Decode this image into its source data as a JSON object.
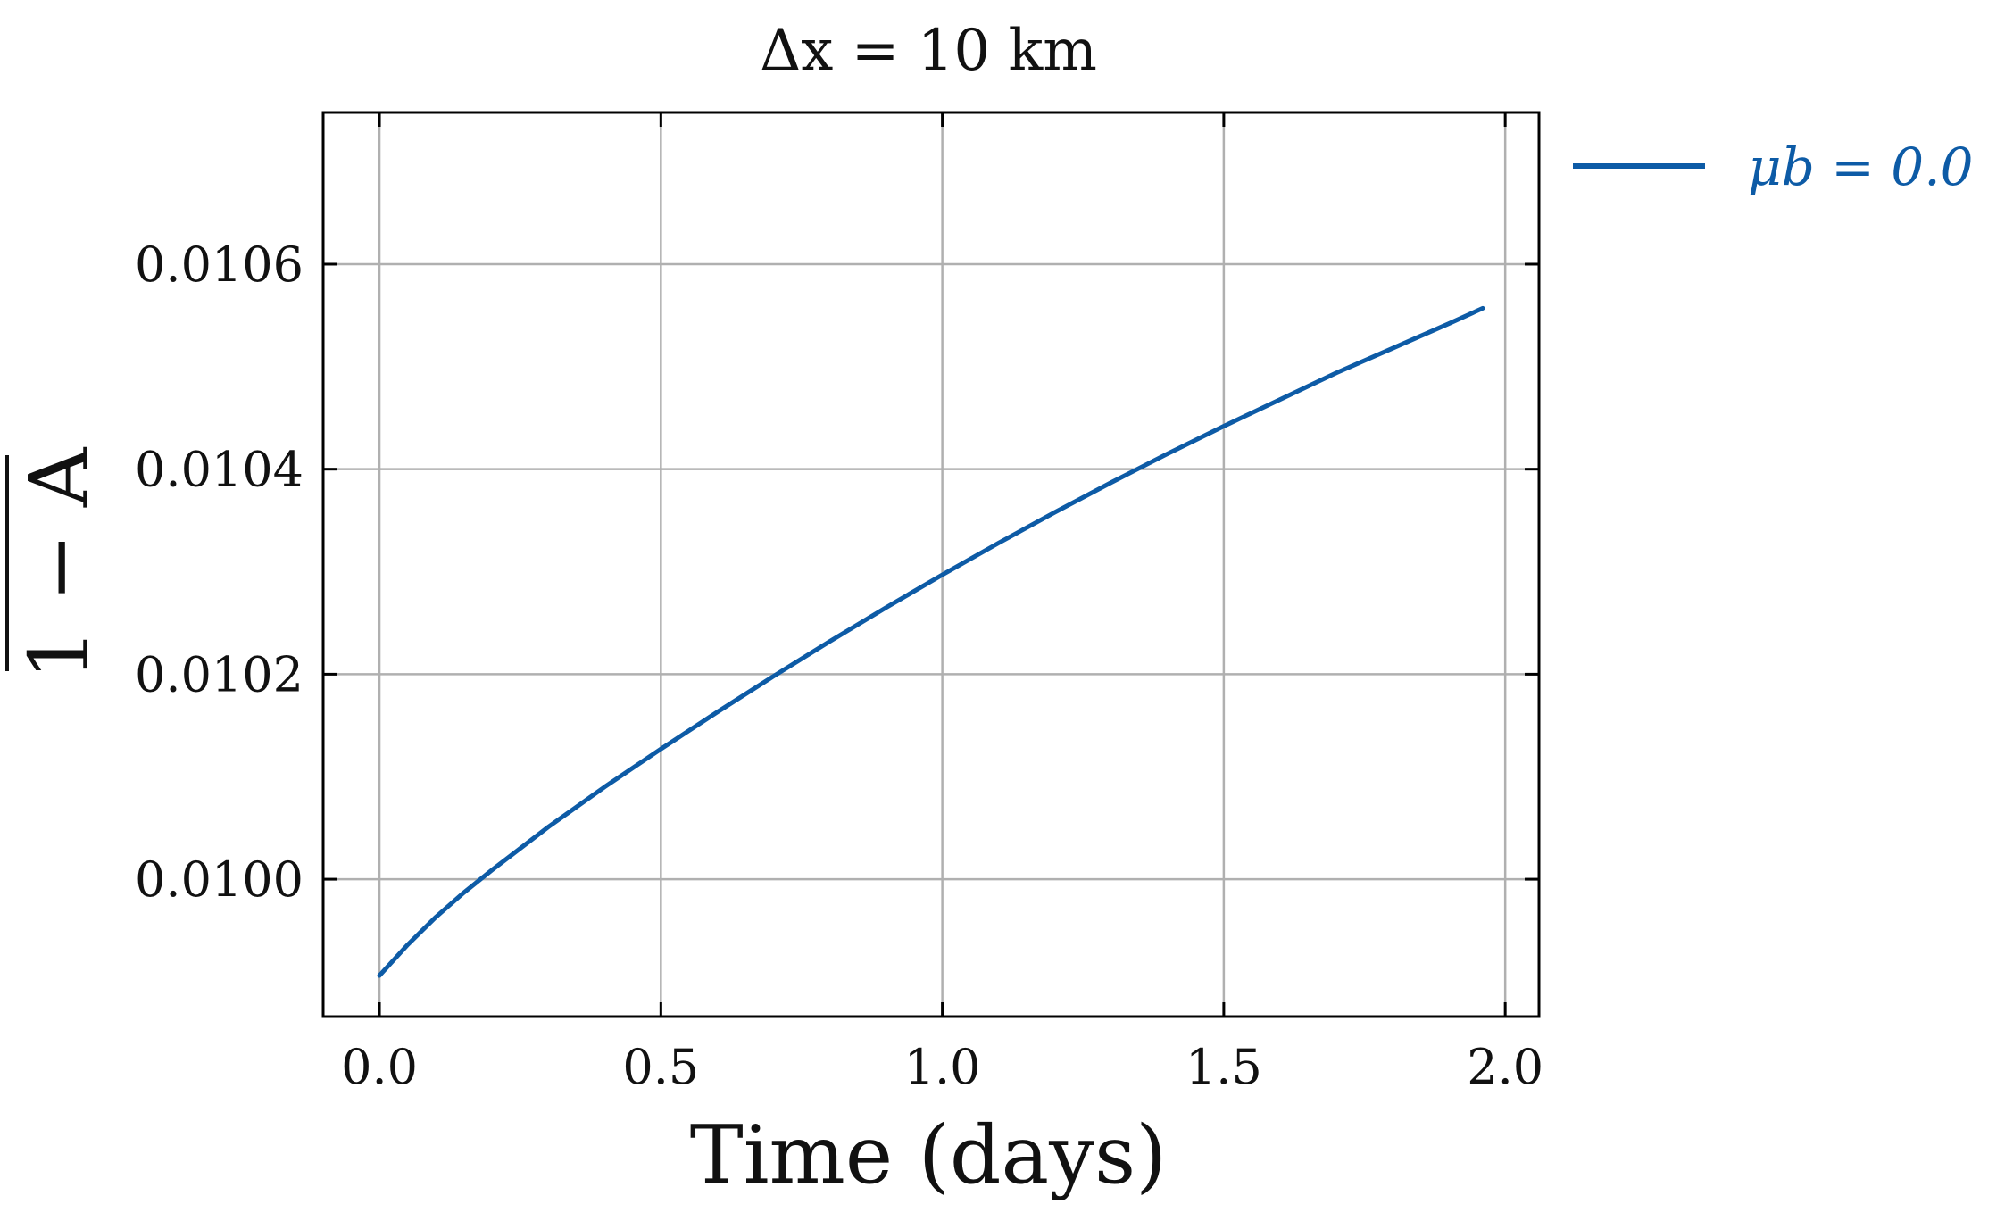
{
  "chart_data": {
    "type": "line",
    "title": "Δx = 10 km",
    "xlabel": "Time (days)",
    "ylabel": "1 − A",
    "xlim": [
      -0.1,
      2.06
    ],
    "ylim": [
      0.009866,
      0.010748
    ],
    "xticks": [
      0.0,
      0.5,
      1.0,
      1.5,
      2.0
    ],
    "xtick_labels": [
      "0.0",
      "0.5",
      "1.0",
      "1.5",
      "2.0"
    ],
    "yticks": [
      0.01,
      0.0102,
      0.0104,
      0.0106
    ],
    "ytick_labels": [
      "0.0100",
      "0.0102",
      "0.0104",
      "0.0106"
    ],
    "grid": true,
    "legend_position": "outside-right-top",
    "series": [
      {
        "name": "μb = 0.0",
        "color": "#0d5ba6",
        "x": [
          0.0,
          0.05,
          0.1,
          0.15,
          0.2,
          0.3,
          0.4,
          0.5,
          0.6,
          0.7,
          0.8,
          0.9,
          1.0,
          1.1,
          1.2,
          1.3,
          1.4,
          1.5,
          1.6,
          1.7,
          1.8,
          1.9,
          1.96
        ],
        "y": [
          0.009906,
          0.009936,
          0.009963,
          0.009987,
          0.010009,
          0.010051,
          0.01009,
          0.010127,
          0.010163,
          0.010198,
          0.010232,
          0.010265,
          0.010297,
          0.010328,
          0.010358,
          0.010387,
          0.010415,
          0.010442,
          0.010468,
          0.010494,
          0.010518,
          0.010542,
          0.010557
        ]
      }
    ]
  }
}
